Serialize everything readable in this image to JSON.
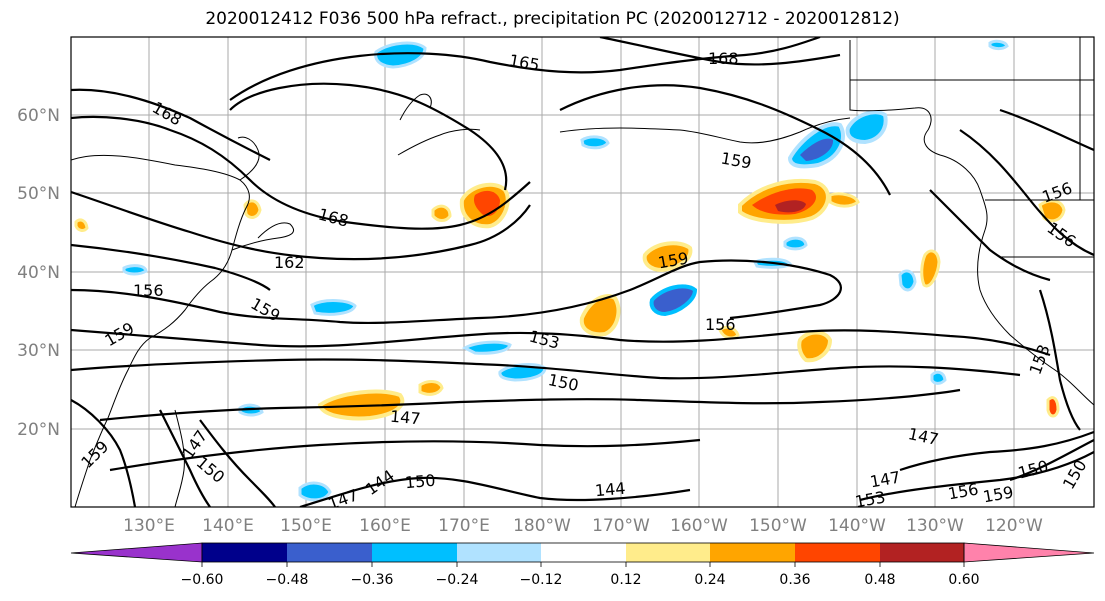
{
  "title": "2020012412 F036 500 hPa refract., precipitation PC (2020012712 - 2020012812)",
  "lat_labels": [
    "60°N",
    "50°N",
    "40°N",
    "30°N",
    "20°N"
  ],
  "lon_labels": [
    "130°E",
    "140°E",
    "150°E",
    "160°E",
    "170°E",
    "180°W",
    "170°W",
    "160°W",
    "150°W",
    "140°W",
    "130°W",
    "120°W"
  ],
  "contour_labels": [
    "168",
    "165",
    "168",
    "159",
    "168",
    "162",
    "156",
    "159",
    "159",
    "159",
    "156",
    "153",
    "150",
    "147",
    "147",
    "150",
    "144",
    "144",
    "147",
    "153",
    "156",
    "159",
    "150",
    "147",
    "153",
    "156",
    "156",
    "159",
    "150",
    "147",
    "150"
  ],
  "colorbar": {
    "ticks": [
      "−0.60",
      "−0.48",
      "−0.36",
      "−0.24",
      "−0.12",
      "0.12",
      "0.24",
      "0.36",
      "0.48",
      "0.60"
    ],
    "colors": [
      "#9932CC",
      "#00008B",
      "#3A5FCD",
      "#00BFFF",
      "#B0E2FF",
      "#FFFFFF",
      "#FFEC8B",
      "#FFA500",
      "#FF4500",
      "#B22222",
      "#FF82AB"
    ]
  }
}
